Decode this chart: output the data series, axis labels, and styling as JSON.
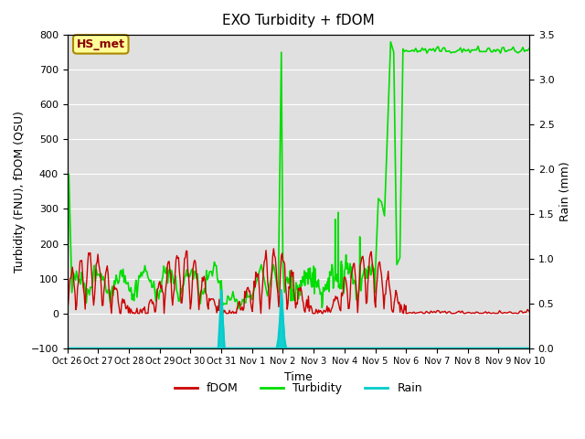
{
  "title": "EXO Turbidity + fDOM",
  "ylabel_left": "Turbidity (FNU), fDOM (QSU)",
  "ylabel_right": "Rain (mm)",
  "xlabel": "Time",
  "ylim_left": [
    -100,
    800
  ],
  "ylim_right": [
    0.0,
    3.5
  ],
  "background_color": "#ffffff",
  "plot_bg_color": "#e0e0e0",
  "fdom_color": "#cc0000",
  "turbidity_color": "#00dd00",
  "rain_color": "#00cccc",
  "annotation_text": "HS_met",
  "annotation_color": "#880000",
  "annotation_bg": "#ffff99",
  "annotation_border": "#aa8800",
  "xtick_positions": [
    0,
    1,
    2,
    3,
    4,
    5,
    6,
    7,
    8,
    9,
    10,
    11,
    12,
    13,
    14,
    15
  ],
  "xtick_labels": [
    "Oct 26",
    "Oct 27",
    "Oct 28",
    "Oct 29",
    "Oct 30",
    "Oct 31",
    "Nov 1",
    "Nov 2",
    "Nov 3",
    "Nov 4",
    "Nov 5",
    "Nov 6",
    "Nov 7",
    "Nov 8",
    "Nov 9",
    "Nov 10"
  ],
  "legend_labels": [
    "fDOM",
    "Turbidity",
    "Rain"
  ]
}
